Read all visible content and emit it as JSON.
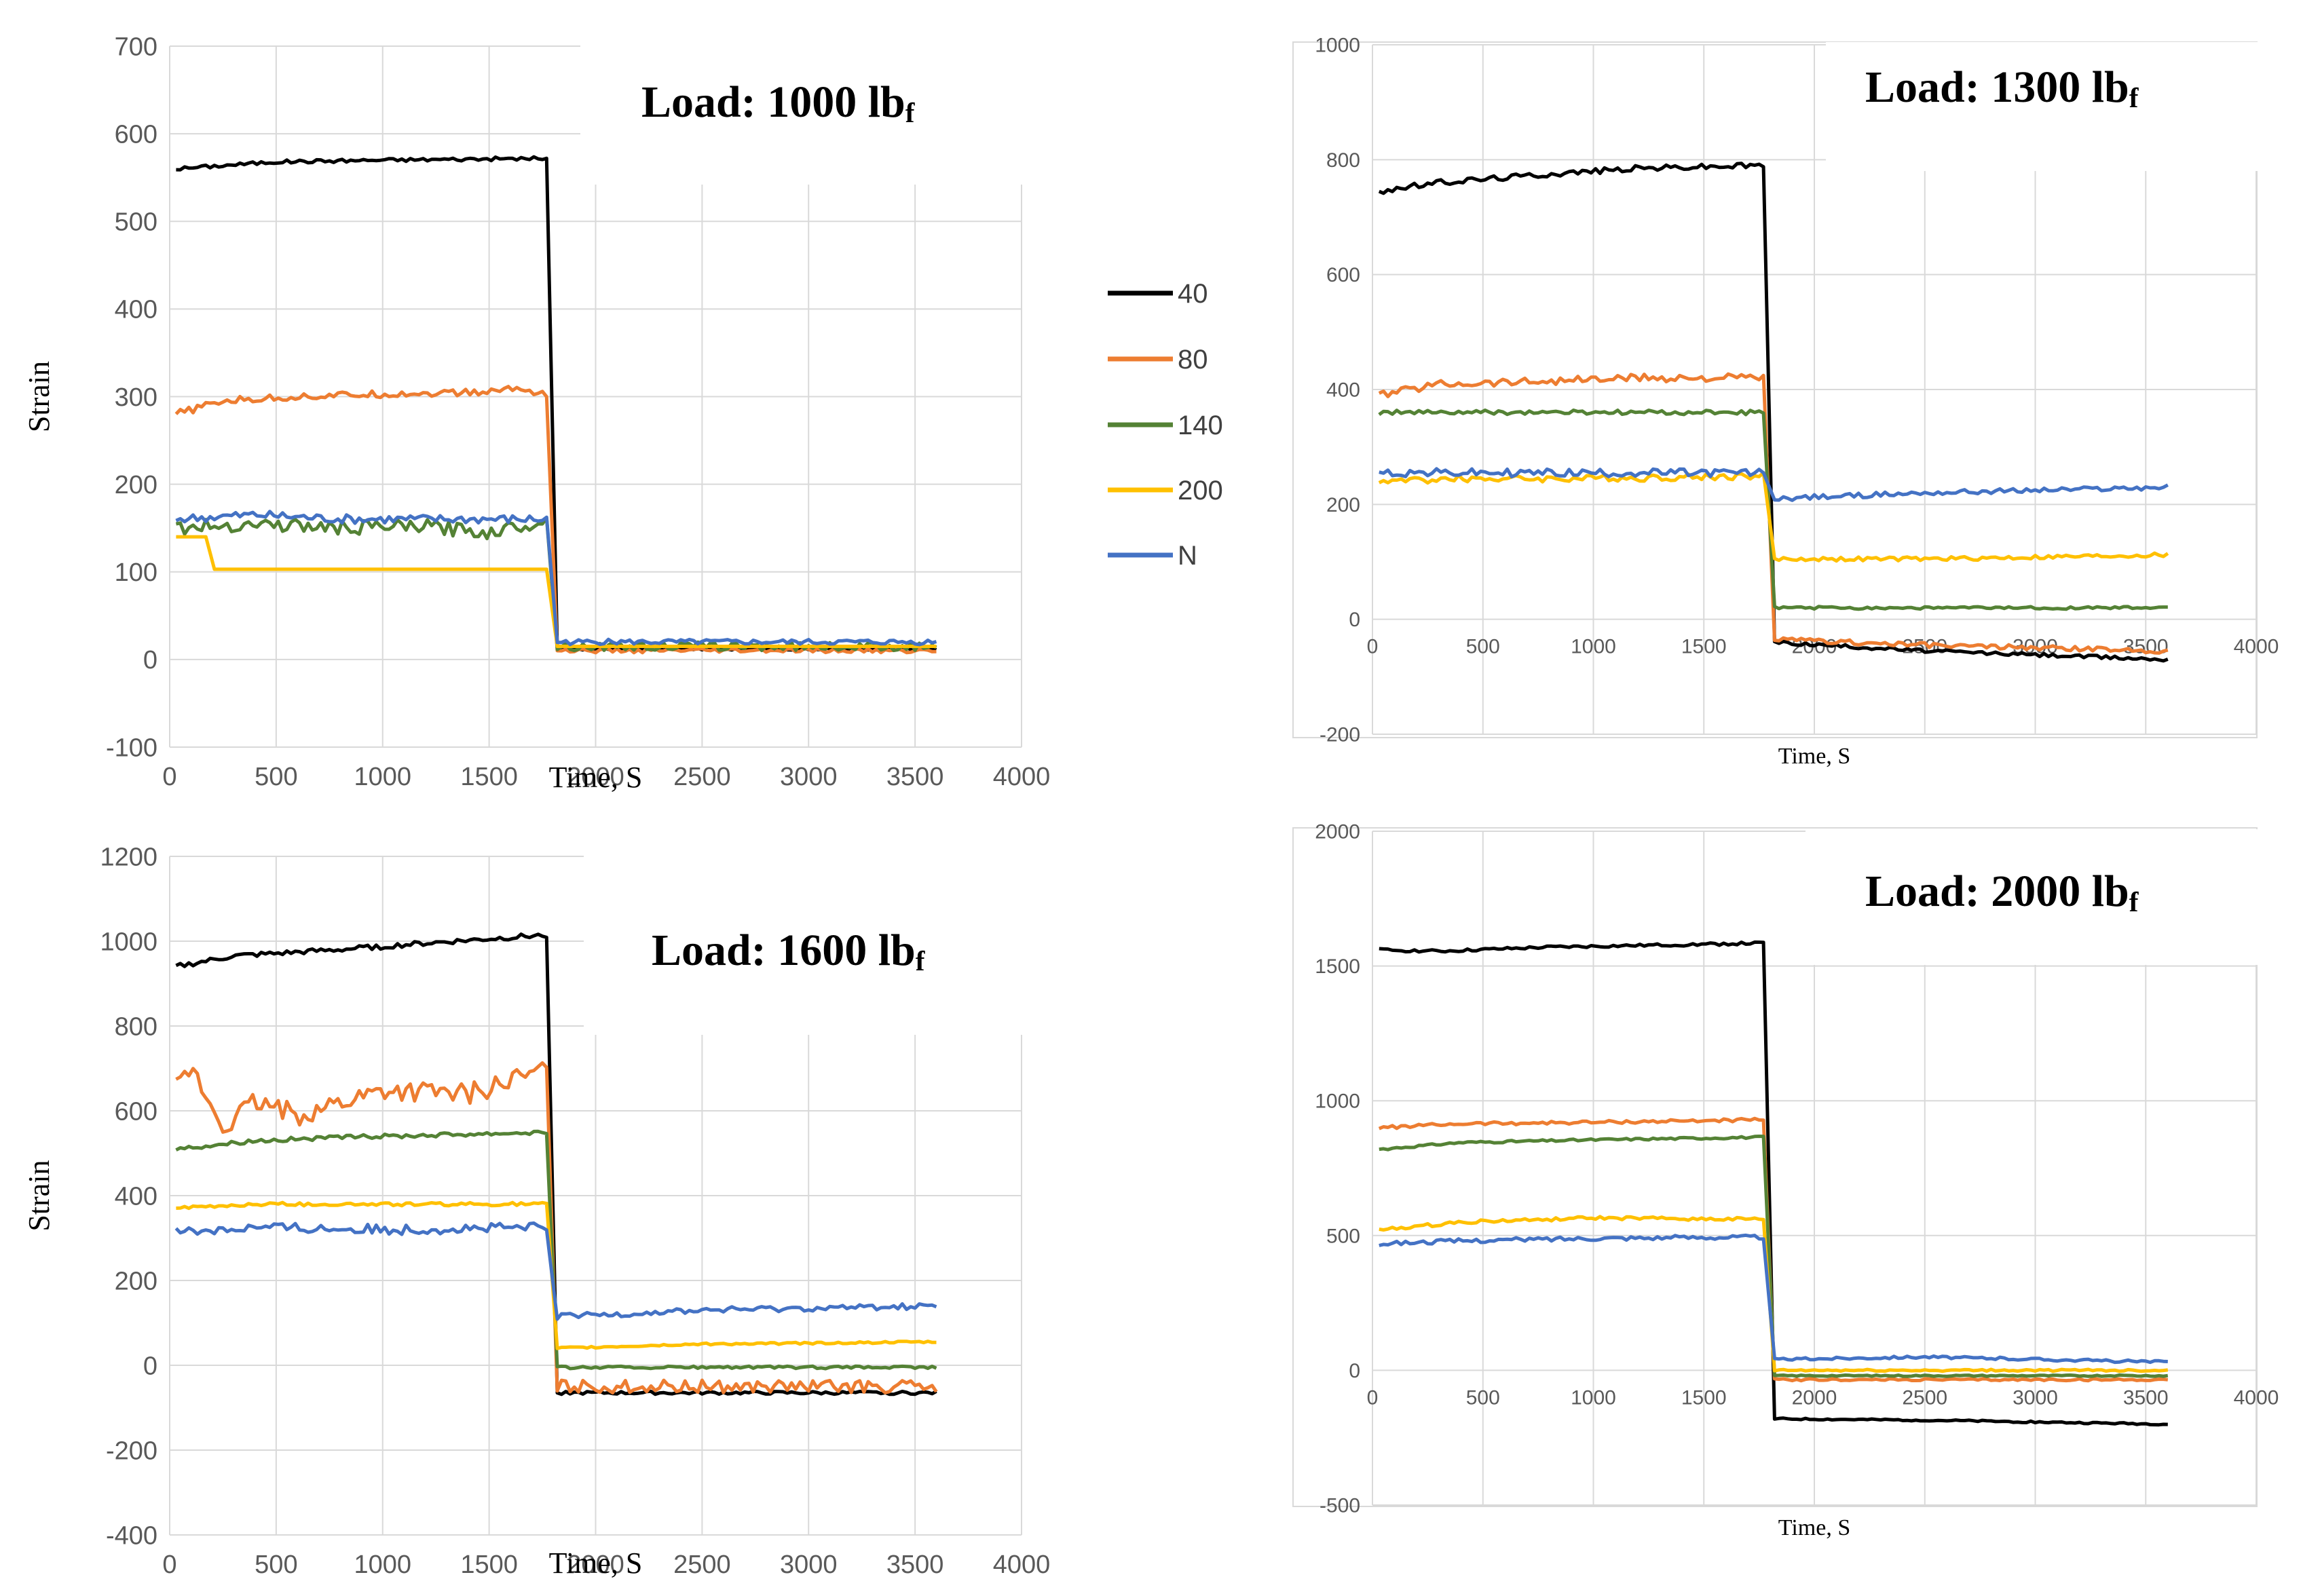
{
  "colors": {
    "s40": "#000000",
    "s80": "#ED7D31",
    "s140": "#548235",
    "s200": "#FFC000",
    "sN": "#4472C4"
  },
  "legend": {
    "items": [
      "40",
      "80",
      "140",
      "200",
      "N"
    ]
  },
  "chart_data": [
    {
      "type": "line",
      "title_main": "Load: 1000 lb",
      "title_sub": "f",
      "xlabel": "Time, S",
      "ylabel": "Strain",
      "xlim": [
        0,
        4000
      ],
      "ylim": [
        -100,
        700
      ],
      "xticks": [
        "0",
        "500",
        "1000",
        "1500",
        "2000",
        "2500",
        "3000",
        "3500",
        "4000"
      ],
      "yticks": [
        "-100",
        "0",
        "100",
        "200",
        "300",
        "400",
        "500",
        "600",
        "700"
      ],
      "series": [
        {
          "name": "40",
          "before": [
            [
              30,
              560
            ],
            [
              500,
              568
            ],
            [
              1000,
              570
            ],
            [
              1780,
              572
            ]
          ],
          "after": [
            [
              1820,
              12
            ],
            [
              3600,
              12
            ]
          ],
          "noise": 2
        },
        {
          "name": "80",
          "before": [
            [
              30,
              280
            ],
            [
              250,
              295
            ],
            [
              600,
              300
            ],
            [
              1000,
              303
            ],
            [
              1500,
              305
            ],
            [
              1600,
              310
            ],
            [
              1780,
              303
            ]
          ],
          "after": [
            [
              1820,
              10
            ],
            [
              3600,
              10
            ]
          ],
          "noise": 4
        },
        {
          "name": "140",
          "before": [
            [
              30,
              150
            ],
            [
              400,
              155
            ],
            [
              800,
              150
            ],
            [
              1200,
              152
            ],
            [
              1500,
              145
            ],
            [
              1780,
              160
            ]
          ],
          "after": [
            [
              1820,
              15
            ],
            [
              3600,
              15
            ]
          ],
          "noise": 8
        },
        {
          "name": "200",
          "before": [
            [
              30,
              140
            ],
            [
              180,
              140
            ],
            [
              200,
              103
            ],
            [
              1780,
              103
            ]
          ],
          "after": [
            [
              1820,
              15
            ],
            [
              3600,
              15
            ]
          ],
          "noise": 0
        },
        {
          "name": "N",
          "before": [
            [
              30,
              160
            ],
            [
              400,
              165
            ],
            [
              800,
              160
            ],
            [
              1200,
              160
            ],
            [
              1780,
              160
            ]
          ],
          "after": [
            [
              1820,
              20
            ],
            [
              3600,
              20
            ]
          ],
          "noise": 5
        }
      ]
    },
    {
      "type": "line",
      "title_main": "Load: 1300 lb",
      "title_sub": "f",
      "xlabel": "Time, S",
      "ylabel": "",
      "xlim": [
        0,
        4000
      ],
      "ylim": [
        -200,
        1000
      ],
      "xticks": [
        "0",
        "500",
        "1000",
        "1500",
        "2000",
        "2500",
        "3000",
        "3500",
        "4000"
      ],
      "yticks": [
        "-200",
        "0",
        "200",
        "400",
        "600",
        "800",
        "1000"
      ],
      "series": [
        {
          "name": "40",
          "before": [
            [
              30,
              745
            ],
            [
              300,
              760
            ],
            [
              800,
              775
            ],
            [
              1200,
              785
            ],
            [
              1780,
              790
            ]
          ],
          "after": [
            [
              1820,
              -40
            ],
            [
              2500,
              -55
            ],
            [
              3600,
              -70
            ]
          ],
          "noise": 5
        },
        {
          "name": "80",
          "before": [
            [
              30,
              390
            ],
            [
              300,
              410
            ],
            [
              800,
              415
            ],
            [
              1200,
              420
            ],
            [
              1780,
              420
            ]
          ],
          "after": [
            [
              1820,
              -35
            ],
            [
              2500,
              -45
            ],
            [
              3600,
              -55
            ]
          ],
          "noise": 7
        },
        {
          "name": "140",
          "before": [
            [
              30,
              360
            ],
            [
              400,
              360
            ],
            [
              1000,
              360
            ],
            [
              1780,
              360
            ]
          ],
          "after": [
            [
              1820,
              20
            ],
            [
              3600,
              20
            ]
          ],
          "noise": 4
        },
        {
          "name": "200",
          "before": [
            [
              30,
              240
            ],
            [
              400,
              245
            ],
            [
              1000,
              245
            ],
            [
              1780,
              250
            ]
          ],
          "after": [
            [
              1820,
              105
            ],
            [
              2500,
              105
            ],
            [
              3600,
              112
            ]
          ],
          "noise": 6
        },
        {
          "name": "N",
          "before": [
            [
              30,
              255
            ],
            [
              400,
              255
            ],
            [
              1000,
              255
            ],
            [
              1780,
              255
            ]
          ],
          "after": [
            [
              1820,
              210
            ],
            [
              2500,
              220
            ],
            [
              3600,
              230
            ]
          ],
          "noise": 7
        }
      ]
    },
    {
      "type": "line",
      "title_main": "Load: 1600 lb",
      "title_sub": "f",
      "xlabel": "Time, S",
      "ylabel": "Strain",
      "xlim": [
        0,
        4000
      ],
      "ylim": [
        -400,
        1200
      ],
      "xticks": [
        "0",
        "500",
        "1000",
        "1500",
        "2000",
        "2500",
        "3000",
        "3500",
        "4000"
      ],
      "yticks": [
        "-400",
        "-200",
        "0",
        "200",
        "400",
        "600",
        "800",
        "1000",
        "1200"
      ],
      "series": [
        {
          "name": "40",
          "before": [
            [
              30,
              940
            ],
            [
              300,
              965
            ],
            [
              800,
              980
            ],
            [
              1200,
              995
            ],
            [
              1780,
              1015
            ]
          ],
          "after": [
            [
              1820,
              -65
            ],
            [
              3600,
              -65
            ]
          ],
          "noise": 6
        },
        {
          "name": "80",
          "before": [
            [
              30,
              650
            ],
            [
              100,
              700
            ],
            [
              250,
              560
            ],
            [
              400,
              620
            ],
            [
              600,
              590
            ],
            [
              1000,
              650
            ],
            [
              1400,
              640
            ],
            [
              1780,
              700
            ]
          ],
          "after": [
            [
              1820,
              -50
            ],
            [
              3600,
              -50
            ]
          ],
          "noise": 25
        },
        {
          "name": "140",
          "before": [
            [
              30,
              510
            ],
            [
              400,
              530
            ],
            [
              1000,
              540
            ],
            [
              1780,
              550
            ]
          ],
          "after": [
            [
              1820,
              -5
            ],
            [
              3600,
              -5
            ]
          ],
          "noise": 5
        },
        {
          "name": "200",
          "before": [
            [
              30,
              370
            ],
            [
              400,
              380
            ],
            [
              1000,
              380
            ],
            [
              1780,
              380
            ]
          ],
          "after": [
            [
              1820,
              40
            ],
            [
              2500,
              50
            ],
            [
              3600,
              55
            ]
          ],
          "noise": 4
        },
        {
          "name": "N",
          "before": [
            [
              30,
              315
            ],
            [
              400,
              325
            ],
            [
              1000,
              320
            ],
            [
              1780,
              325
            ]
          ],
          "after": [
            [
              1820,
              115
            ],
            [
              2500,
              130
            ],
            [
              3600,
              140
            ]
          ],
          "noise": 12
        }
      ]
    },
    {
      "type": "line",
      "title_main": "Load: 2000 lb",
      "title_sub": "f",
      "xlabel": "Time, S",
      "ylabel": "",
      "xlim": [
        0,
        4000
      ],
      "ylim": [
        -500,
        2000
      ],
      "xticks": [
        "0",
        "500",
        "1000",
        "1500",
        "2000",
        "2500",
        "3000",
        "3500",
        "4000"
      ],
      "yticks": [
        "-500",
        "0",
        "500",
        "1000",
        "1500",
        "2000"
      ],
      "series": [
        {
          "name": "40",
          "before": [
            [
              30,
              1560
            ],
            [
              300,
              1555
            ],
            [
              800,
              1570
            ],
            [
              1780,
              1585
            ]
          ],
          "after": [
            [
              1820,
              -180
            ],
            [
              2500,
              -185
            ],
            [
              3600,
              -200
            ]
          ],
          "noise": 5
        },
        {
          "name": "80",
          "before": [
            [
              30,
              900
            ],
            [
              400,
              915
            ],
            [
              1000,
              920
            ],
            [
              1780,
              930
            ]
          ],
          "after": [
            [
              1820,
              -35
            ],
            [
              3600,
              -35
            ]
          ],
          "noise": 6
        },
        {
          "name": "140",
          "before": [
            [
              30,
              820
            ],
            [
              400,
              845
            ],
            [
              1000,
              855
            ],
            [
              1780,
              865
            ]
          ],
          "after": [
            [
              1820,
              -20
            ],
            [
              3600,
              -20
            ]
          ],
          "noise": 4
        },
        {
          "name": "200",
          "before": [
            [
              30,
              520
            ],
            [
              400,
              550
            ],
            [
              1000,
              565
            ],
            [
              1780,
              560
            ]
          ],
          "after": [
            [
              1820,
              0
            ],
            [
              3600,
              0
            ]
          ],
          "noise": 6
        },
        {
          "name": "N",
          "before": [
            [
              30,
              470
            ],
            [
              400,
              480
            ],
            [
              1000,
              490
            ],
            [
              1780,
              495
            ]
          ],
          "after": [
            [
              1820,
              40
            ],
            [
              2500,
              50
            ],
            [
              3600,
              30
            ]
          ],
          "noise": 8
        }
      ]
    }
  ]
}
